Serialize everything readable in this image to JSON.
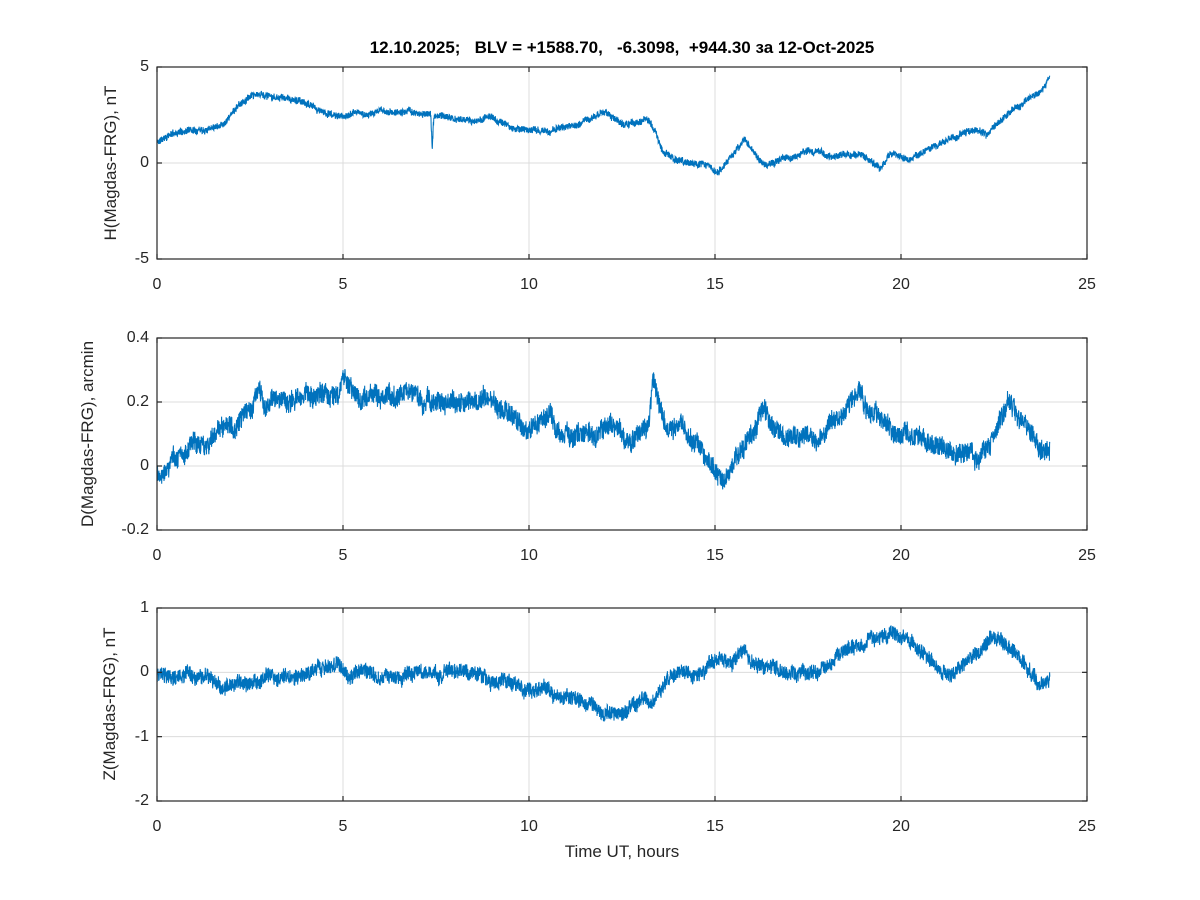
{
  "figure": {
    "title": "12.10.2025;   BLV = +1588.70,   -6.3098,  +944.30 за 12-Oct-2025",
    "xlabel": "Time UT, hours",
    "colors": {
      "line": "#0072BD",
      "axis": "#262626",
      "grid": "#dcdcdc",
      "background": "#ffffff",
      "text": "#262626"
    }
  },
  "chart_data": [
    {
      "type": "line",
      "ylabel": "H(Magdas-FRG), nT",
      "xlabel": "",
      "xlim": [
        0,
        25
      ],
      "ylim": [
        -5,
        5
      ],
      "xticks": [
        0,
        5,
        10,
        15,
        20,
        25
      ],
      "xtick_labels": [
        "0",
        "5",
        "10",
        "15",
        "20",
        "25"
      ],
      "yticks": [
        5,
        0,
        -5
      ],
      "ytick_labels": [
        "5",
        "0",
        "-5"
      ],
      "grid": true,
      "legend": null,
      "series": [
        {
          "name": "H",
          "noise_amplitude": 0.2,
          "keypoints": [
            [
              0,
              1.05
            ],
            [
              0.3,
              1.45
            ],
            [
              0.7,
              1.7
            ],
            [
              1.1,
              1.85
            ],
            [
              1.5,
              2.0
            ],
            [
              1.8,
              2.15
            ],
            [
              2.0,
              2.6
            ],
            [
              2.2,
              3.0
            ],
            [
              2.45,
              3.35
            ],
            [
              2.8,
              3.5
            ],
            [
              3.1,
              3.5
            ],
            [
              3.4,
              3.3
            ],
            [
              3.8,
              3.2
            ],
            [
              4.2,
              2.9
            ],
            [
              4.6,
              2.6
            ],
            [
              5.0,
              2.4
            ],
            [
              5.3,
              2.6
            ],
            [
              5.6,
              2.5
            ],
            [
              5.9,
              2.7
            ],
            [
              6.2,
              2.6
            ],
            [
              6.5,
              2.7
            ],
            [
              6.9,
              2.6
            ],
            [
              7.36,
              2.5
            ],
            [
              7.4,
              0.7
            ],
            [
              7.44,
              2.4
            ],
            [
              7.8,
              2.4
            ],
            [
              8.2,
              2.3
            ],
            [
              8.6,
              2.2
            ],
            [
              9.0,
              2.3
            ],
            [
              9.4,
              1.95
            ],
            [
              9.8,
              1.8
            ],
            [
              10.2,
              1.7
            ],
            [
              10.6,
              1.65
            ],
            [
              11.0,
              1.8
            ],
            [
              11.4,
              1.95
            ],
            [
              11.75,
              2.55
            ],
            [
              11.95,
              2.7
            ],
            [
              12.2,
              2.35
            ],
            [
              12.5,
              2.1
            ],
            [
              12.75,
              2.0
            ],
            [
              13.0,
              2.1
            ],
            [
              13.2,
              2.2
            ],
            [
              13.4,
              1.8
            ],
            [
              13.6,
              0.5
            ],
            [
              13.8,
              0.3
            ],
            [
              14.1,
              0.05
            ],
            [
              14.5,
              -0.1
            ],
            [
              14.8,
              -0.1
            ],
            [
              15.05,
              -0.45
            ],
            [
              15.3,
              -0.05
            ],
            [
              15.55,
              0.5
            ],
            [
              15.8,
              1.2
            ],
            [
              16.05,
              0.6
            ],
            [
              16.35,
              -0.05
            ],
            [
              16.7,
              0.05
            ],
            [
              17.0,
              0.3
            ],
            [
              17.4,
              0.55
            ],
            [
              17.8,
              0.6
            ],
            [
              18.2,
              0.45
            ],
            [
              18.6,
              0.5
            ],
            [
              18.95,
              0.35
            ],
            [
              19.2,
              0.1
            ],
            [
              19.45,
              -0.25
            ],
            [
              19.7,
              0.35
            ],
            [
              19.95,
              0.5
            ],
            [
              20.2,
              0.15
            ],
            [
              20.5,
              0.55
            ],
            [
              20.8,
              0.8
            ],
            [
              21.1,
              1.1
            ],
            [
              21.4,
              1.3
            ],
            [
              21.7,
              1.6
            ],
            [
              22.0,
              1.75
            ],
            [
              22.3,
              1.35
            ],
            [
              22.6,
              1.9
            ],
            [
              22.9,
              2.6
            ],
            [
              23.2,
              3.0
            ],
            [
              23.45,
              3.3
            ],
            [
              23.7,
              3.6
            ],
            [
              23.9,
              4.0
            ],
            [
              24,
              4.5
            ]
          ]
        }
      ]
    },
    {
      "type": "line",
      "ylabel": "D(Magdas-FRG), arcmin",
      "xlabel": "",
      "xlim": [
        0,
        25
      ],
      "ylim": [
        -0.2,
        0.4
      ],
      "xticks": [
        0,
        5,
        10,
        15,
        20,
        25
      ],
      "xtick_labels": [
        "0",
        "5",
        "10",
        "15",
        "20",
        "25"
      ],
      "yticks": [
        0.4,
        0.2,
        0,
        -0.2
      ],
      "ytick_labels": [
        "0.4",
        "0.2",
        "0",
        "-0.2"
      ],
      "grid": true,
      "legend": null,
      "series": [
        {
          "name": "D",
          "noise_amplitude": 0.035,
          "keypoints": [
            [
              0,
              -0.02
            ],
            [
              0.3,
              0.02
            ],
            [
              0.7,
              0.05
            ],
            [
              1.0,
              0.07
            ],
            [
              1.4,
              0.09
            ],
            [
              1.8,
              0.11
            ],
            [
              2.2,
              0.13
            ],
            [
              2.5,
              0.17
            ],
            [
              2.7,
              0.22
            ],
            [
              2.9,
              0.18
            ],
            [
              3.1,
              0.22
            ],
            [
              3.4,
              0.2
            ],
            [
              3.7,
              0.21
            ],
            [
              4.0,
              0.22
            ],
            [
              4.3,
              0.21
            ],
            [
              4.6,
              0.22
            ],
            [
              4.9,
              0.24
            ],
            [
              5.05,
              0.27
            ],
            [
              5.25,
              0.23
            ],
            [
              5.5,
              0.21
            ],
            [
              5.8,
              0.23
            ],
            [
              6.1,
              0.22
            ],
            [
              6.4,
              0.23
            ],
            [
              6.7,
              0.21
            ],
            [
              7.0,
              0.22
            ],
            [
              7.3,
              0.21
            ],
            [
              7.6,
              0.2
            ],
            [
              7.9,
              0.19
            ],
            [
              8.2,
              0.2
            ],
            [
              8.5,
              0.19
            ],
            [
              8.8,
              0.2
            ],
            [
              9.1,
              0.2
            ],
            [
              9.4,
              0.17
            ],
            [
              9.7,
              0.15
            ],
            [
              10.0,
              0.11
            ],
            [
              10.3,
              0.13
            ],
            [
              10.6,
              0.16
            ],
            [
              10.9,
              0.1
            ],
            [
              11.2,
              0.09
            ],
            [
              11.5,
              0.1
            ],
            [
              11.8,
              0.12
            ],
            [
              12.1,
              0.13
            ],
            [
              12.4,
              0.1
            ],
            [
              12.7,
              0.09
            ],
            [
              13.0,
              0.1
            ],
            [
              13.2,
              0.13
            ],
            [
              13.35,
              0.27
            ],
            [
              13.5,
              0.2
            ],
            [
              13.7,
              0.12
            ],
            [
              14.0,
              0.11
            ],
            [
              14.3,
              0.09
            ],
            [
              14.6,
              0.05
            ],
            [
              14.9,
              0.0
            ],
            [
              15.15,
              -0.04
            ],
            [
              15.45,
              0.0
            ],
            [
              15.75,
              0.06
            ],
            [
              16.05,
              0.12
            ],
            [
              16.3,
              0.2
            ],
            [
              16.6,
              0.12
            ],
            [
              16.9,
              0.1
            ],
            [
              17.2,
              0.09
            ],
            [
              17.5,
              0.1
            ],
            [
              17.8,
              0.11
            ],
            [
              18.1,
              0.13
            ],
            [
              18.4,
              0.16
            ],
            [
              18.7,
              0.21
            ],
            [
              18.9,
              0.23
            ],
            [
              19.15,
              0.19
            ],
            [
              19.4,
              0.15
            ],
            [
              19.7,
              0.13
            ],
            [
              20.0,
              0.12
            ],
            [
              20.3,
              0.1
            ],
            [
              20.6,
              0.09
            ],
            [
              20.9,
              0.08
            ],
            [
              21.2,
              0.06
            ],
            [
              21.5,
              0.04
            ],
            [
              21.8,
              0.05
            ],
            [
              22.1,
              0.05
            ],
            [
              22.4,
              0.07
            ],
            [
              22.6,
              0.12
            ],
            [
              22.85,
              0.22
            ],
            [
              23.15,
              0.14
            ],
            [
              23.4,
              0.1
            ],
            [
              23.7,
              0.07
            ],
            [
              24,
              0.05
            ]
          ]
        }
      ]
    },
    {
      "type": "line",
      "ylabel": "Z(Magdas-FRG), nT",
      "xlabel": "Time UT, hours",
      "xlim": [
        0,
        25
      ],
      "ylim": [
        -2,
        1
      ],
      "xticks": [
        0,
        5,
        10,
        15,
        20,
        25
      ],
      "xtick_labels": [
        "0",
        "5",
        "10",
        "15",
        "20",
        "25"
      ],
      "yticks": [
        1,
        0,
        -1,
        -2
      ],
      "ytick_labels": [
        "1",
        "0",
        "-1",
        "-2"
      ],
      "grid": true,
      "legend": null,
      "series": [
        {
          "name": "Z",
          "noise_amplitude": 0.13,
          "keypoints": [
            [
              0,
              -0.05
            ],
            [
              0.4,
              -0.1
            ],
            [
              0.8,
              -0.05
            ],
            [
              1.2,
              -0.15
            ],
            [
              1.6,
              -0.2
            ],
            [
              2.0,
              -0.25
            ],
            [
              2.4,
              -0.2
            ],
            [
              2.8,
              -0.12
            ],
            [
              3.2,
              -0.1
            ],
            [
              3.6,
              -0.05
            ],
            [
              4.0,
              0.0
            ],
            [
              4.4,
              0.08
            ],
            [
              4.8,
              0.05
            ],
            [
              5.2,
              0.0
            ],
            [
              5.6,
              -0.05
            ],
            [
              6.0,
              -0.1
            ],
            [
              6.4,
              -0.08
            ],
            [
              6.8,
              -0.02
            ],
            [
              7.2,
              0.03
            ],
            [
              7.6,
              0.05
            ],
            [
              8.0,
              0.0
            ],
            [
              8.4,
              -0.05
            ],
            [
              8.8,
              -0.1
            ],
            [
              9.2,
              -0.12
            ],
            [
              9.6,
              -0.17
            ],
            [
              10.0,
              -0.22
            ],
            [
              10.4,
              -0.28
            ],
            [
              10.8,
              -0.35
            ],
            [
              11.2,
              -0.42
            ],
            [
              11.6,
              -0.5
            ],
            [
              12.0,
              -0.6
            ],
            [
              12.3,
              -0.68
            ],
            [
              12.6,
              -0.62
            ],
            [
              12.9,
              -0.55
            ],
            [
              13.2,
              -0.5
            ],
            [
              13.5,
              -0.35
            ],
            [
              13.8,
              -0.18
            ],
            [
              14.1,
              -0.05
            ],
            [
              14.5,
              0.02
            ],
            [
              15.0,
              0.08
            ],
            [
              15.4,
              0.12
            ],
            [
              15.75,
              0.3
            ],
            [
              16.0,
              0.15
            ],
            [
              16.4,
              0.1
            ],
            [
              16.8,
              -0.02
            ],
            [
              17.1,
              -0.08
            ],
            [
              17.4,
              -0.02
            ],
            [
              17.7,
              0.05
            ],
            [
              18.0,
              0.12
            ],
            [
              18.3,
              0.28
            ],
            [
              18.6,
              0.42
            ],
            [
              19.0,
              0.48
            ],
            [
              19.4,
              0.55
            ],
            [
              19.8,
              0.65
            ],
            [
              20.1,
              0.55
            ],
            [
              20.4,
              0.35
            ],
            [
              20.7,
              0.2
            ],
            [
              21.0,
              0.02
            ],
            [
              21.3,
              -0.08
            ],
            [
              21.6,
              0.05
            ],
            [
              21.9,
              0.25
            ],
            [
              22.2,
              0.45
            ],
            [
              22.5,
              0.58
            ],
            [
              22.8,
              0.45
            ],
            [
              23.1,
              0.25
            ],
            [
              23.4,
              0.05
            ],
            [
              23.7,
              -0.12
            ],
            [
              23.9,
              -0.18
            ],
            [
              24,
              -0.1
            ]
          ]
        }
      ]
    }
  ]
}
